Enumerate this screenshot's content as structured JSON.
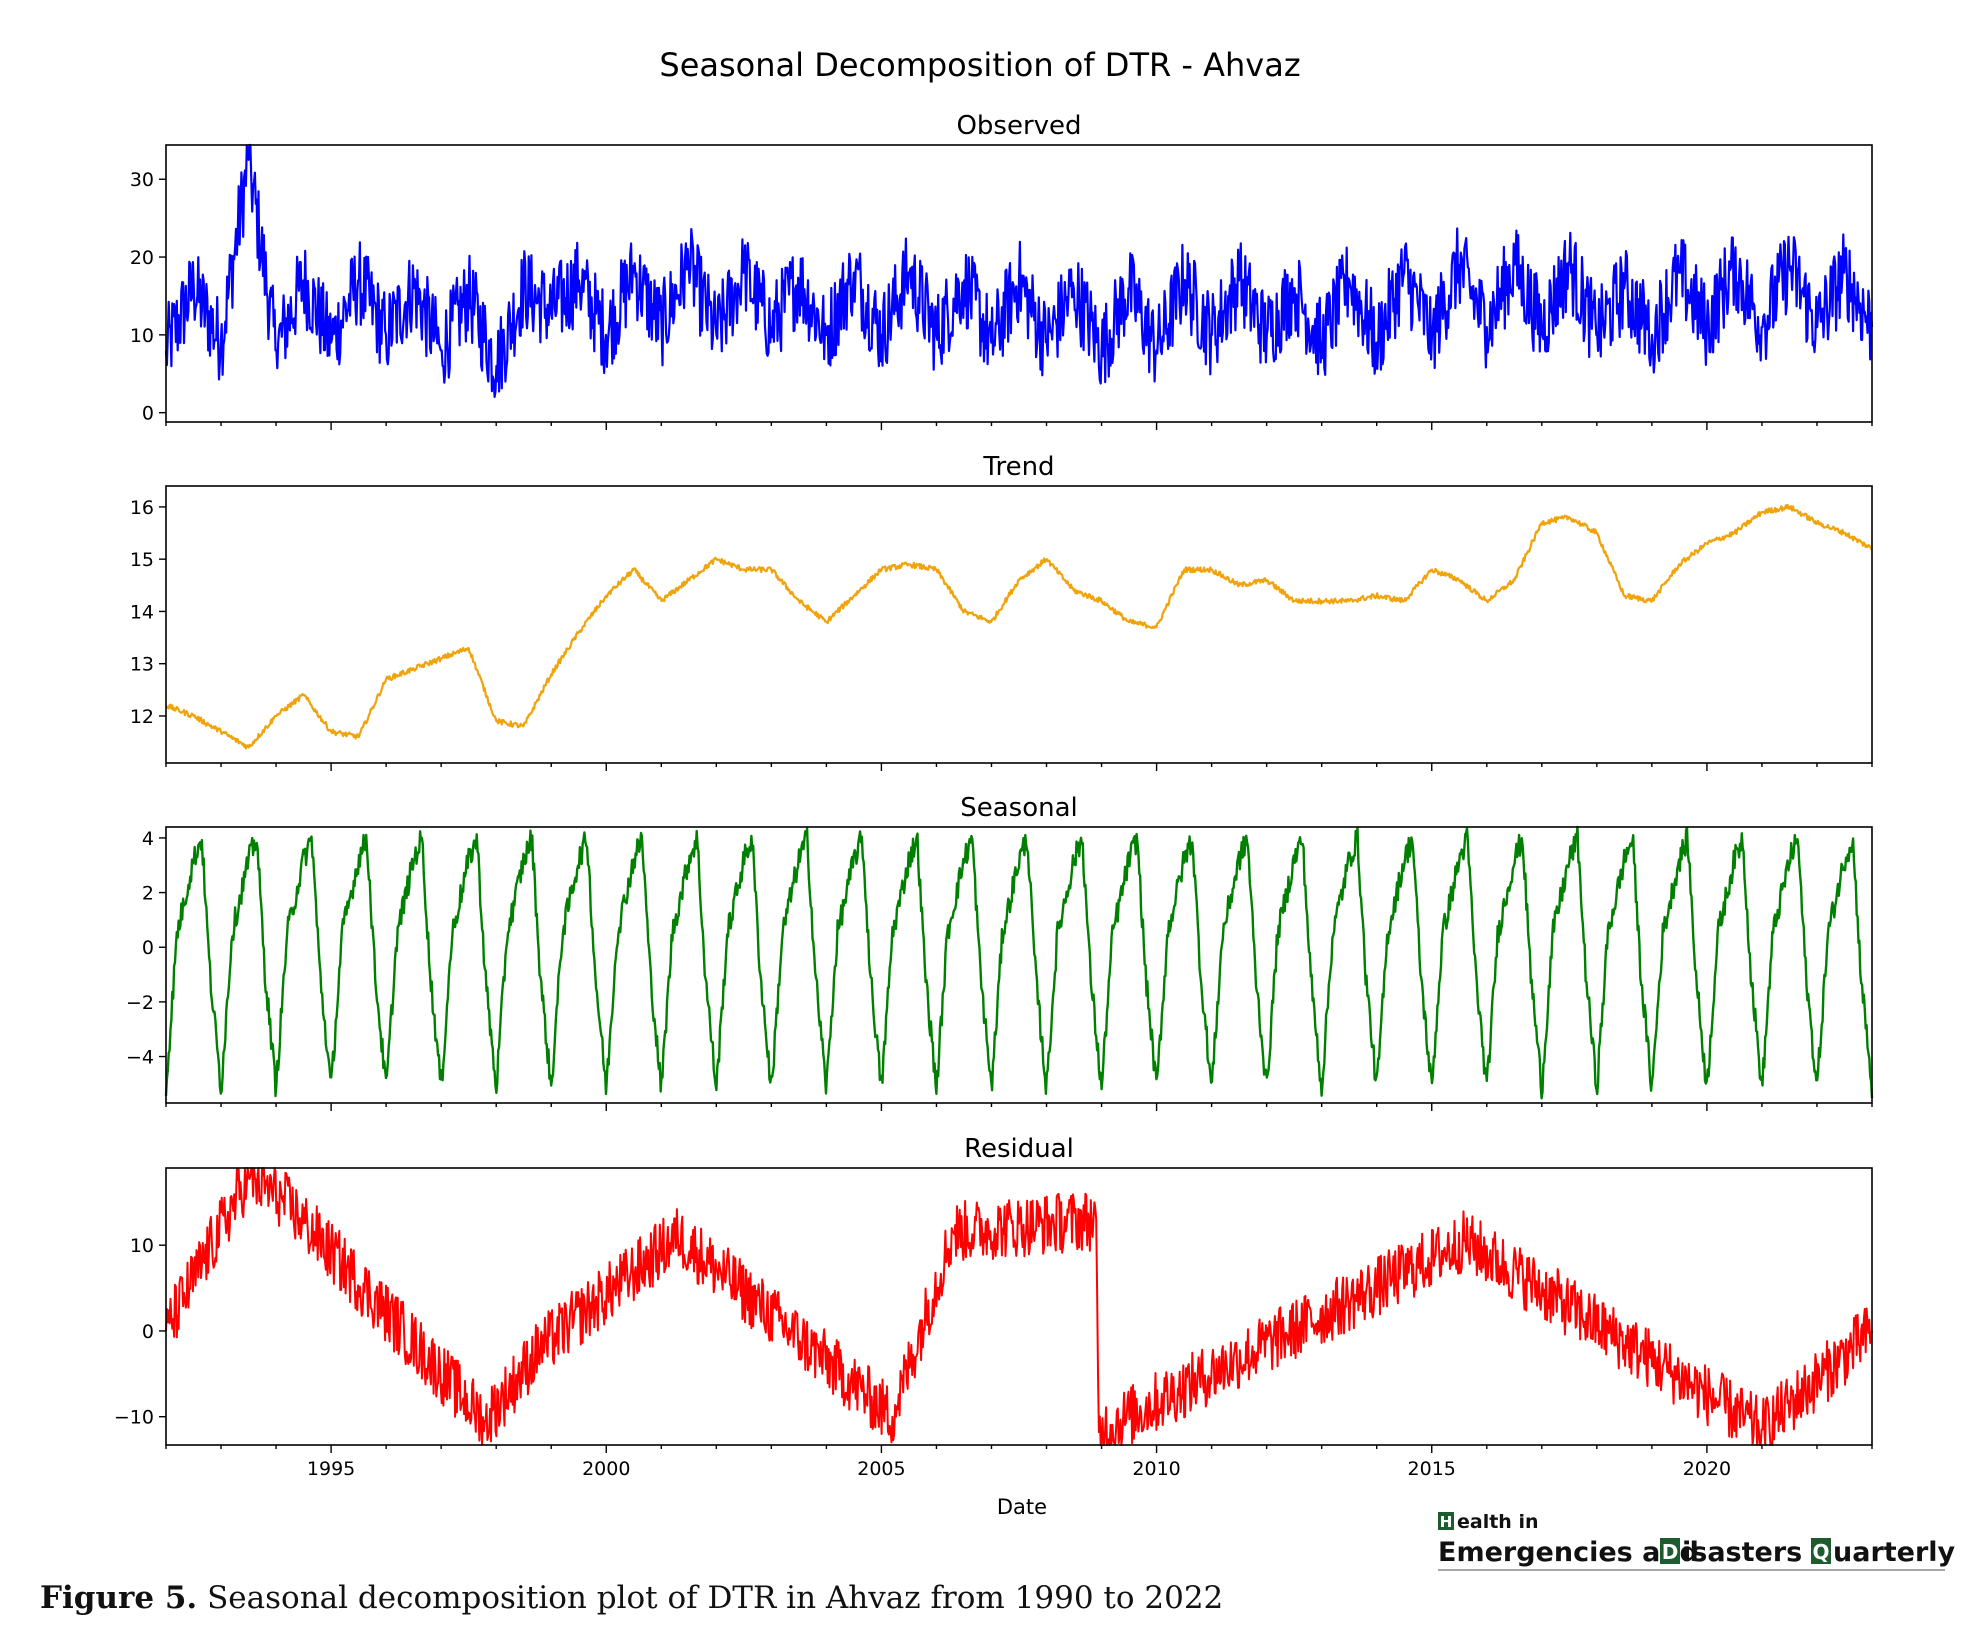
{
  "figure": {
    "suptitle": "Seasonal Decomposition of DTR - Ahvaz",
    "xlabel": "Date",
    "x_ticks": [
      "1995",
      "2000",
      "2005",
      "2010",
      "2015",
      "2020"
    ]
  },
  "chart_data": [
    {
      "type": "line",
      "title": "Observed",
      "color": "#0000ff",
      "x_range": [
        1992.0,
        2023.0
      ],
      "ylim": [
        -1.2,
        34.4
      ],
      "y_ticks": [
        0,
        10,
        20,
        30
      ],
      "y_tick_labels": [
        "0",
        "10",
        "20",
        "30"
      ],
      "x": [
        1992.0,
        1992.5,
        1993.0,
        1993.5,
        1994.0,
        1994.5,
        1995.0,
        1995.5,
        1996.0,
        1996.5,
        1997.0,
        1997.5,
        1998.0,
        1998.5,
        1999.0,
        1999.5,
        2000.0,
        2000.5,
        2001.0,
        2001.5,
        2002.0,
        2002.5,
        2003.0,
        2003.5,
        2004.0,
        2004.5,
        2005.0,
        2005.5,
        2006.0,
        2006.5,
        2007.0,
        2007.5,
        2008.0,
        2008.5,
        2009.0,
        2009.5,
        2010.0,
        2010.5,
        2011.0,
        2011.5,
        2012.0,
        2012.5,
        2013.0,
        2013.5,
        2014.0,
        2014.5,
        2015.0,
        2015.5,
        2016.0,
        2016.5,
        2017.0,
        2017.5,
        2018.0,
        2018.5,
        2019.0,
        2019.5,
        2020.0,
        2020.5,
        2021.0,
        2021.5,
        2022.0,
        2022.5,
        2023.0
      ],
      "values": [
        8,
        16,
        9,
        32.5,
        8,
        17,
        9,
        17,
        10,
        16,
        8,
        15,
        6,
        16,
        13,
        17,
        10,
        18,
        11,
        19,
        10,
        18,
        11,
        17,
        10,
        18,
        10,
        18,
        10,
        17,
        9,
        17,
        9,
        16,
        8,
        16,
        8,
        17,
        10,
        17,
        10,
        16,
        9,
        17,
        9,
        18,
        10,
        19,
        11,
        19,
        11,
        19,
        10,
        16,
        10,
        18,
        11,
        19,
        11,
        19,
        11,
        18,
        11
      ]
    },
    {
      "type": "line",
      "title": "Trend",
      "color": "#f0a30a",
      "x_range": [
        1992.0,
        2023.0
      ],
      "ylim": [
        11.1,
        16.4
      ],
      "y_ticks": [
        12,
        13,
        14,
        15,
        16
      ],
      "y_tick_labels": [
        "12",
        "13",
        "14",
        "15",
        "16"
      ],
      "x": [
        1992.0,
        1992.5,
        1993.0,
        1993.5,
        1994.0,
        1994.5,
        1995.0,
        1995.5,
        1996.0,
        1996.5,
        1997.0,
        1997.5,
        1998.0,
        1998.5,
        1999.0,
        1999.5,
        2000.0,
        2000.5,
        2001.0,
        2001.5,
        2002.0,
        2002.5,
        2003.0,
        2003.5,
        2004.0,
        2004.5,
        2005.0,
        2005.5,
        2006.0,
        2006.5,
        2007.0,
        2007.5,
        2008.0,
        2008.5,
        2009.0,
        2009.5,
        2010.0,
        2010.5,
        2011.0,
        2011.5,
        2012.0,
        2012.5,
        2013.0,
        2013.5,
        2014.0,
        2014.5,
        2015.0,
        2015.5,
        2016.0,
        2016.5,
        2017.0,
        2017.5,
        2018.0,
        2018.5,
        2019.0,
        2019.5,
        2020.0,
        2020.5,
        2021.0,
        2021.5,
        2022.0,
        2022.5,
        2023.0
      ],
      "values": [
        12.2,
        12.0,
        11.7,
        11.4,
        12.0,
        12.4,
        11.7,
        11.6,
        12.7,
        12.9,
        13.1,
        13.3,
        11.9,
        11.8,
        12.8,
        13.6,
        14.3,
        14.8,
        14.2,
        14.6,
        15.0,
        14.8,
        14.8,
        14.2,
        13.8,
        14.3,
        14.8,
        14.9,
        14.8,
        14.0,
        13.8,
        14.6,
        15.0,
        14.4,
        14.2,
        13.8,
        13.7,
        14.8,
        14.8,
        14.5,
        14.6,
        14.2,
        14.2,
        14.2,
        14.3,
        14.2,
        14.8,
        14.6,
        14.2,
        14.6,
        15.7,
        15.8,
        15.5,
        14.3,
        14.2,
        14.9,
        15.3,
        15.5,
        15.9,
        16.0,
        15.7,
        15.5,
        15.2
      ]
    },
    {
      "type": "line",
      "title": "Seasonal",
      "color": "#008000",
      "x_range": [
        1992.0,
        2023.0
      ],
      "ylim": [
        -5.7,
        4.4
      ],
      "y_ticks": [
        4,
        2,
        0,
        -2,
        -4
      ],
      "y_tick_labels": [
        "4",
        "2",
        "0",
        "−2",
        "−4"
      ],
      "period_years": 1,
      "cycle_phase": [
        0,
        0.2,
        0.5,
        0.65,
        0.8,
        1
      ],
      "cycle_values": [
        -5.2,
        0.5,
        3.2,
        4.0,
        -1.0,
        -5.2
      ]
    },
    {
      "type": "line",
      "title": "Residual",
      "color": "#ff0000",
      "x_range": [
        1992.0,
        2023.0
      ],
      "ylim": [
        -13.3,
        19.0
      ],
      "y_ticks": [
        10,
        0,
        -10
      ],
      "y_tick_labels": [
        "10",
        "0",
        "−10"
      ],
      "x": [
        1992.0,
        1993.5,
        1994.1,
        1997.8,
        1998.8,
        2001.3,
        2005.2,
        2006.3,
        2008.9,
        2008.95,
        2015.6,
        2021.0,
        2023.0
      ],
      "values": [
        0,
        18,
        15.5,
        -10.5,
        -2,
        11,
        -10,
        11.5,
        13,
        -11.8,
        10.5,
        -11.5,
        0
      ]
    }
  ],
  "logo": {
    "box_h": "H",
    "word1": "ealth in",
    "word_emerg": "Emergencies and ",
    "box_d": "D",
    "word_dis": "isasters ",
    "box_q": "Q",
    "word_q": "uarterly"
  },
  "caption": {
    "bold": "Figure 5.",
    "text": " Seasonal decomposition plot of DTR in Ahvaz from 1990 to 2022"
  }
}
